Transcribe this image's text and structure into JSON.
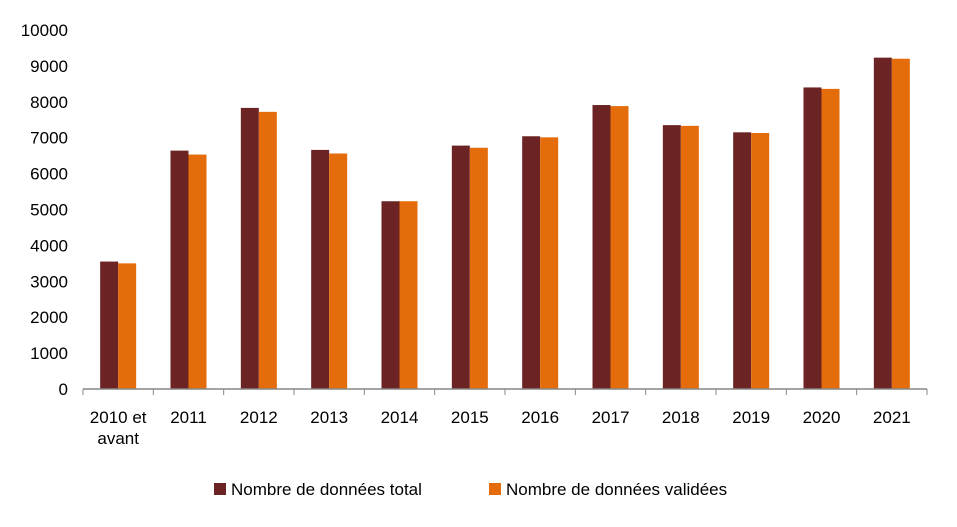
{
  "chart_data": {
    "type": "bar",
    "categories": [
      [
        "2010 et",
        "avant"
      ],
      [
        "2011"
      ],
      [
        "2012"
      ],
      [
        "2013"
      ],
      [
        "2014"
      ],
      [
        "2015"
      ],
      [
        "2016"
      ],
      [
        "2017"
      ],
      [
        "2018"
      ],
      [
        "2019"
      ],
      [
        "2020"
      ],
      [
        "2021"
      ]
    ],
    "series": [
      {
        "name": "Nombre de données total",
        "color": "#6b2323",
        "values": [
          3550,
          6640,
          7830,
          6660,
          5230,
          6780,
          7040,
          7910,
          7350,
          7150,
          8400,
          9230
        ]
      },
      {
        "name": "Nombre de données validées",
        "color": "#e46c0a",
        "values": [
          3500,
          6530,
          7720,
          6560,
          5230,
          6720,
          7010,
          7880,
          7330,
          7130,
          8360,
          9200
        ]
      }
    ],
    "ylim": [
      0,
      10000
    ],
    "yticks": [
      0,
      1000,
      2000,
      3000,
      4000,
      5000,
      6000,
      7000,
      8000,
      9000,
      10000
    ],
    "grid": false,
    "legend_position": "bottom"
  }
}
